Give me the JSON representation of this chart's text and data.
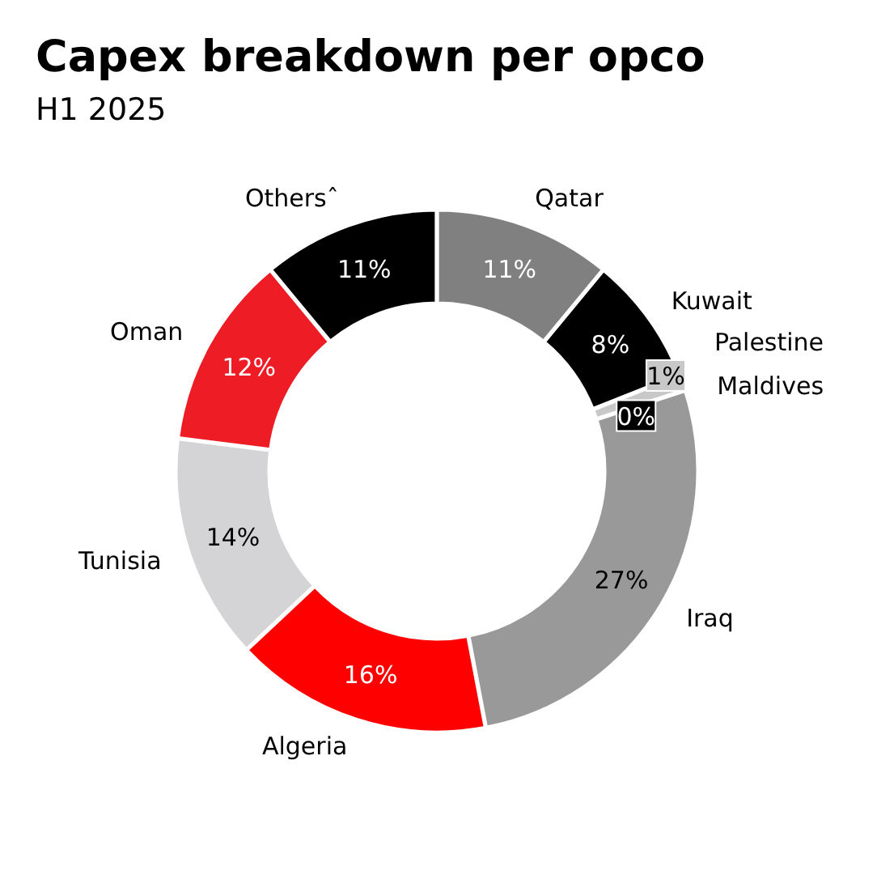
{
  "chart_data": {
    "type": "donut",
    "title": "Capex breakdown per opco",
    "subtitle": "H1 2025",
    "categories": [
      "Qatar",
      "Kuwait",
      "Palestine",
      "Maldives",
      "Iraq",
      "Algeria",
      "Tunisia",
      "Oman",
      "Othersˆ"
    ],
    "values": [
      11,
      8,
      1,
      0,
      27,
      16,
      14,
      12,
      11
    ],
    "value_labels": [
      "11%",
      "8%",
      "1%",
      "0%",
      "27%",
      "16%",
      "14%",
      "12%",
      "11%"
    ],
    "colors": [
      "#808080",
      "#000000",
      "#c8c8c8",
      "#000000",
      "#999999",
      "#ff0000",
      "#d4d4d6",
      "#ee1c25",
      "#000000"
    ]
  }
}
